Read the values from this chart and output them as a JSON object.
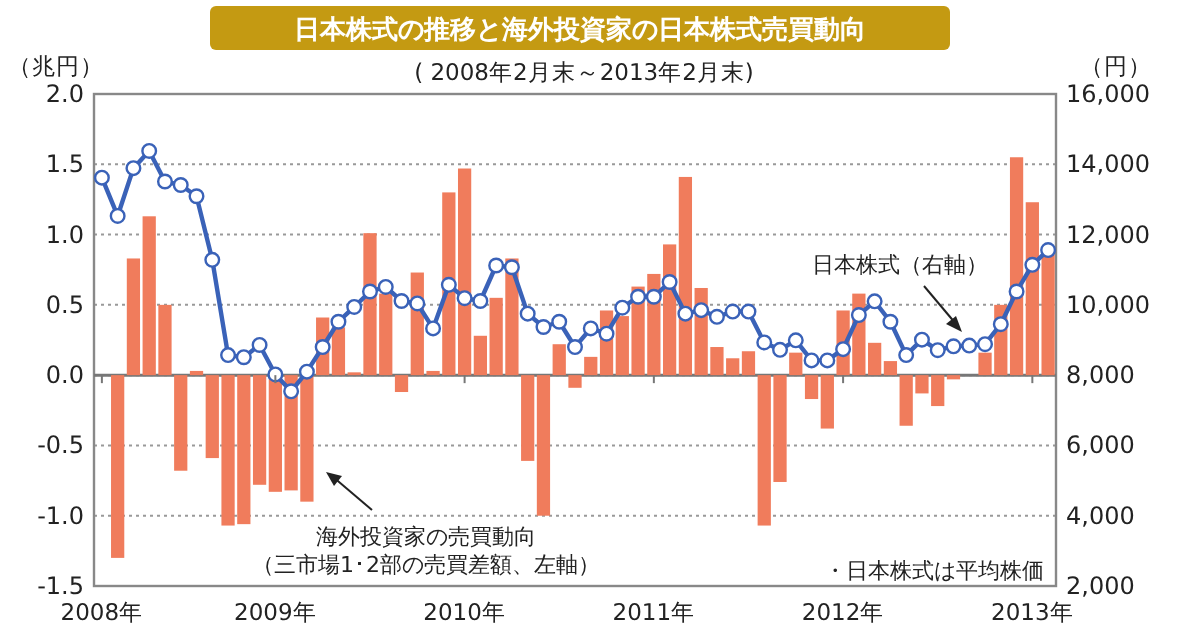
{
  "chart_data": {
    "type": "bar",
    "title": "日本株式の推移と海外投資家の日本株式売買動向",
    "subtitle": "( 2008年2月末～2013年2月末)",
    "ylabel": "（兆円）",
    "y2label": "（円）",
    "categories": [
      "2008年",
      null,
      null,
      null,
      null,
      null,
      null,
      null,
      null,
      null,
      null,
      "2009年",
      null,
      null,
      null,
      null,
      null,
      null,
      null,
      null,
      null,
      null,
      null,
      "2010年",
      null,
      null,
      null,
      null,
      null,
      null,
      null,
      null,
      null,
      null,
      null,
      "2011年",
      null,
      null,
      null,
      null,
      null,
      null,
      null,
      null,
      null,
      null,
      null,
      "2012年",
      null,
      null,
      null,
      null,
      null,
      null,
      null,
      null,
      null,
      null,
      null,
      "2013年",
      null
    ],
    "series": [
      {
        "color": "#f07c5c",
        "values": [
          null,
          -1.3,
          0.83,
          1.13,
          0.5,
          -0.68,
          0.03,
          -0.59,
          -1.07,
          -1.06,
          -0.78,
          -0.83,
          -0.82,
          -0.9,
          0.41,
          0.34,
          0.02,
          1.01,
          0.58,
          -0.12,
          0.73,
          0.03,
          1.3,
          1.47,
          0.28,
          0.55,
          0.83,
          -0.61,
          -1.0,
          0.22,
          -0.09,
          0.13,
          0.46,
          0.42,
          0.63,
          0.72,
          0.93,
          1.41,
          0.62,
          0.2,
          0.12,
          0.17,
          -1.07,
          -0.76,
          0.16,
          -0.17,
          -0.38,
          0.46,
          0.58,
          0.23,
          0.1,
          -0.36,
          -0.13,
          -0.22,
          -0.03,
          null,
          0.16,
          0.5,
          1.55,
          1.23,
          0.86
        ]
      },
      {
        "type": "line",
        "axis": "y2",
        "color": "#3a62b8",
        "marker": "circle",
        "line_style": "solid",
        "values": [
          13620,
          12530,
          13890,
          14380,
          13510,
          13410,
          13090,
          11280,
          8570,
          8510,
          8860,
          8020,
          7540,
          8100,
          8800,
          9520,
          9940,
          10380,
          10510,
          10110,
          10040,
          9330,
          10570,
          10190,
          10110,
          11120,
          11070,
          9750,
          9370,
          9520,
          8800,
          9330,
          9180,
          9920,
          10230,
          10230,
          10650,
          9750,
          9850,
          9660,
          9810,
          9810,
          8930,
          8720,
          8990,
          8420,
          8420,
          8740,
          9710,
          10100,
          9520,
          8570,
          9010,
          8710,
          8820,
          8840,
          8880,
          9450,
          10380,
          11140,
          11560
        ]
      }
    ],
    "ylim": [
      -1.5,
      2
    ],
    "yticks": [
      {
        "value": -1.5,
        "label": "-1.5"
      },
      {
        "value": -1,
        "label": "-1.0"
      },
      {
        "value": -0.5,
        "label": "-0.5"
      },
      {
        "value": 0,
        "label": "0.0"
      },
      {
        "value": 0.5,
        "label": "0.5"
      },
      {
        "value": 1,
        "label": "1.0"
      },
      {
        "value": 1.5,
        "label": "1.5"
      },
      {
        "value": 2,
        "label": "2.0"
      }
    ],
    "y2lim": [
      2000,
      16000
    ],
    "y2ticks": [
      {
        "value": 2000,
        "label": "2,000"
      },
      {
        "value": 4000,
        "label": "4,000"
      },
      {
        "value": 6000,
        "label": "6,000"
      },
      {
        "value": 8000,
        "label": "8,000"
      },
      {
        "value": 10000,
        "label": "10,000"
      },
      {
        "value": 12000,
        "label": "12,000"
      },
      {
        "value": 14000,
        "label": "14,000"
      },
      {
        "value": 16000,
        "label": "16,000"
      }
    ],
    "grid": "y",
    "annotations": [
      "海外投資家の売買動向",
      "（三市場1･2部の売買差額、左軸）",
      "日本株式（右軸）",
      "・日本株式は平均株価"
    ]
  }
}
